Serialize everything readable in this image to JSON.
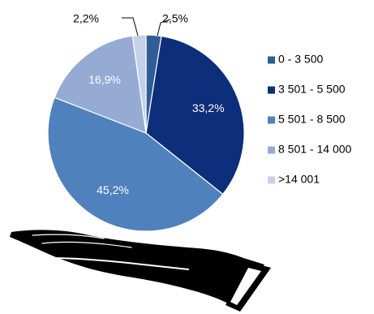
{
  "chart_data": {
    "type": "pie",
    "title": "",
    "categories": [
      "0 - 3 500",
      "3 501 - 5 500",
      "5 501 - 8 500",
      "8 501 - 14 000",
      ">14 001"
    ],
    "values": [
      2.5,
      33.2,
      45.2,
      16.9,
      2.2
    ],
    "value_labels": [
      "2,5%",
      "33,2%",
      "45,2%",
      "16,9%",
      "2,2%"
    ],
    "colors": [
      "#2f5d96",
      "#0d2e7a",
      "#4f81bd",
      "#95abd3",
      "#c5d1e8"
    ],
    "label_colors": [
      "#000000",
      "#ffffff",
      "#ffffff",
      "#ffffff",
      "#000000"
    ],
    "start_angle_deg": 0,
    "direction": "clockwise",
    "legend_position": "right"
  },
  "decoration": {
    "icon": "open-hand-icon"
  }
}
